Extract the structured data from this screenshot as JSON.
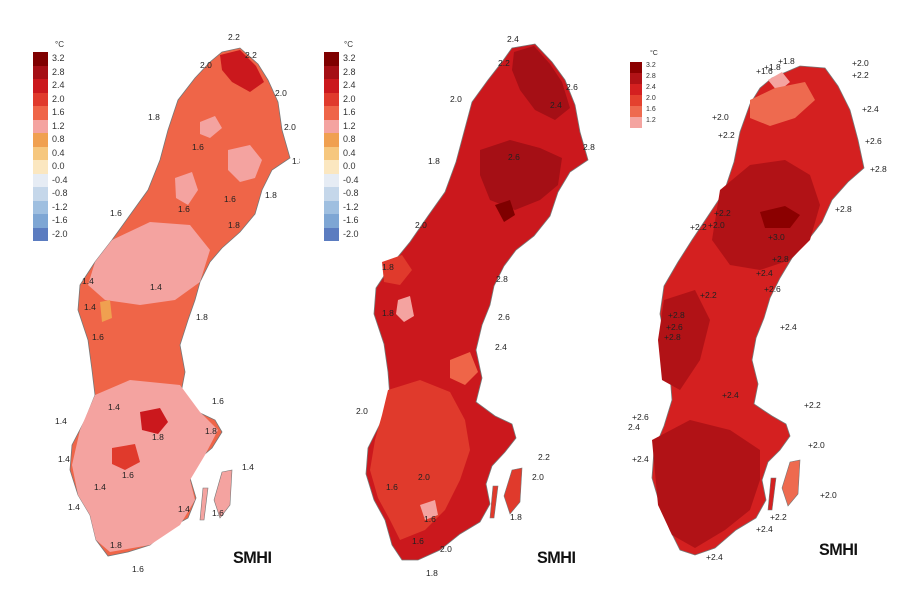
{
  "panels": [
    {
      "legend": {
        "unit": "°C",
        "entries": [
          {
            "label": "3.2",
            "color": "#7f0000"
          },
          {
            "label": "2.8",
            "color": "#a50f15"
          },
          {
            "label": "2.4",
            "color": "#cb181d"
          },
          {
            "label": "2.0",
            "color": "#e03a2c"
          },
          {
            "label": "1.6",
            "color": "#ef6548"
          },
          {
            "label": "1.2",
            "color": "#f4a3a0"
          },
          {
            "label": "0.8",
            "color": "#f0a050"
          },
          {
            "label": "0.4",
            "color": "#f6c77e"
          },
          {
            "label": "0.0",
            "color": "#fbe7c0"
          },
          {
            "label": "-0.4",
            "color": "#e6ecf4"
          },
          {
            "label": "-0.8",
            "color": "#c5d7ea"
          },
          {
            "label": "-1.2",
            "color": "#9fbfe0"
          },
          {
            "label": "-1.6",
            "color": "#7ea6d4"
          },
          {
            "label": "-2.0",
            "color": "#5b7cc0"
          }
        ]
      },
      "contour_labels": [
        "2.2",
        "2.2",
        "2.0",
        "2.0",
        "2.0",
        "1.8",
        "1.8",
        "1.6",
        "1.8",
        "1.6",
        "1.6",
        "1.8",
        "1.6",
        "1.4",
        "1.4",
        "1.4",
        "1.8",
        "1.6",
        "1.4",
        "1.8",
        "1.4",
        "1.6",
        "1.6",
        "1.8",
        "1.4",
        "1.4",
        "1.4",
        "1.4",
        "1.6",
        "1.4",
        "1.8",
        "1.6"
      ],
      "brand": "SMHI"
    },
    {
      "legend": {
        "unit": "°C",
        "entries": [
          {
            "label": "3.2",
            "color": "#7f0000"
          },
          {
            "label": "2.8",
            "color": "#a50f15"
          },
          {
            "label": "2.4",
            "color": "#cb181d"
          },
          {
            "label": "2.0",
            "color": "#e03a2c"
          },
          {
            "label": "1.6",
            "color": "#ef6548"
          },
          {
            "label": "1.2",
            "color": "#f4a3a0"
          },
          {
            "label": "0.8",
            "color": "#f0a050"
          },
          {
            "label": "0.4",
            "color": "#f6c77e"
          },
          {
            "label": "0.0",
            "color": "#fbe7c0"
          },
          {
            "label": "-0.4",
            "color": "#e6ecf4"
          },
          {
            "label": "-0.8",
            "color": "#c5d7ea"
          },
          {
            "label": "-1.2",
            "color": "#9fbfe0"
          },
          {
            "label": "-1.6",
            "color": "#7ea6d4"
          },
          {
            "label": "-2.0",
            "color": "#5b7cc0"
          }
        ]
      },
      "contour_labels": [
        "2.4",
        "2.2",
        "2.0",
        "2.4",
        "2.6",
        "1.8",
        "2.6",
        "2.8",
        "2.0",
        "1.8",
        "2.8",
        "1.8",
        "2.6",
        "2.4",
        "2.0",
        "2.2",
        "2.0",
        "1.6",
        "2.0",
        "1.6",
        "1.8",
        "1.6",
        "2.0",
        "1.8"
      ],
      "brand": "SMHI"
    },
    {
      "legend": {
        "unit": "°C",
        "entries": [
          {
            "label": "3.2",
            "color": "#8b0000"
          },
          {
            "label": "2.8",
            "color": "#b11216"
          },
          {
            "label": "2.4",
            "color": "#d42020"
          },
          {
            "label": "2.0",
            "color": "#e4412e"
          },
          {
            "label": "1.6",
            "color": "#ee6a4f"
          },
          {
            "label": "1.2",
            "color": "#f4a4a0"
          }
        ]
      },
      "contour_labels": [
        "+1.8",
        "+1.6",
        "+1.8",
        "+2.0",
        "+2.2",
        "+2.4",
        "+2.0",
        "+2.2",
        "+2.6",
        "+2.8",
        "+2.8",
        "+2.2",
        "+2.2",
        "+2.0",
        "+3.0",
        "+2.8",
        "+2.6",
        "+2.2",
        "+2.8",
        "+2.4",
        "+2.6",
        "+2.4",
        "+2.8",
        "+2.4",
        "+2.2",
        "+2.6",
        "2.4",
        "+2.4",
        "+2.0",
        "+2.0",
        "+2.2",
        "+2.4",
        "+2.4"
      ],
      "brand": "SMHI"
    }
  ]
}
